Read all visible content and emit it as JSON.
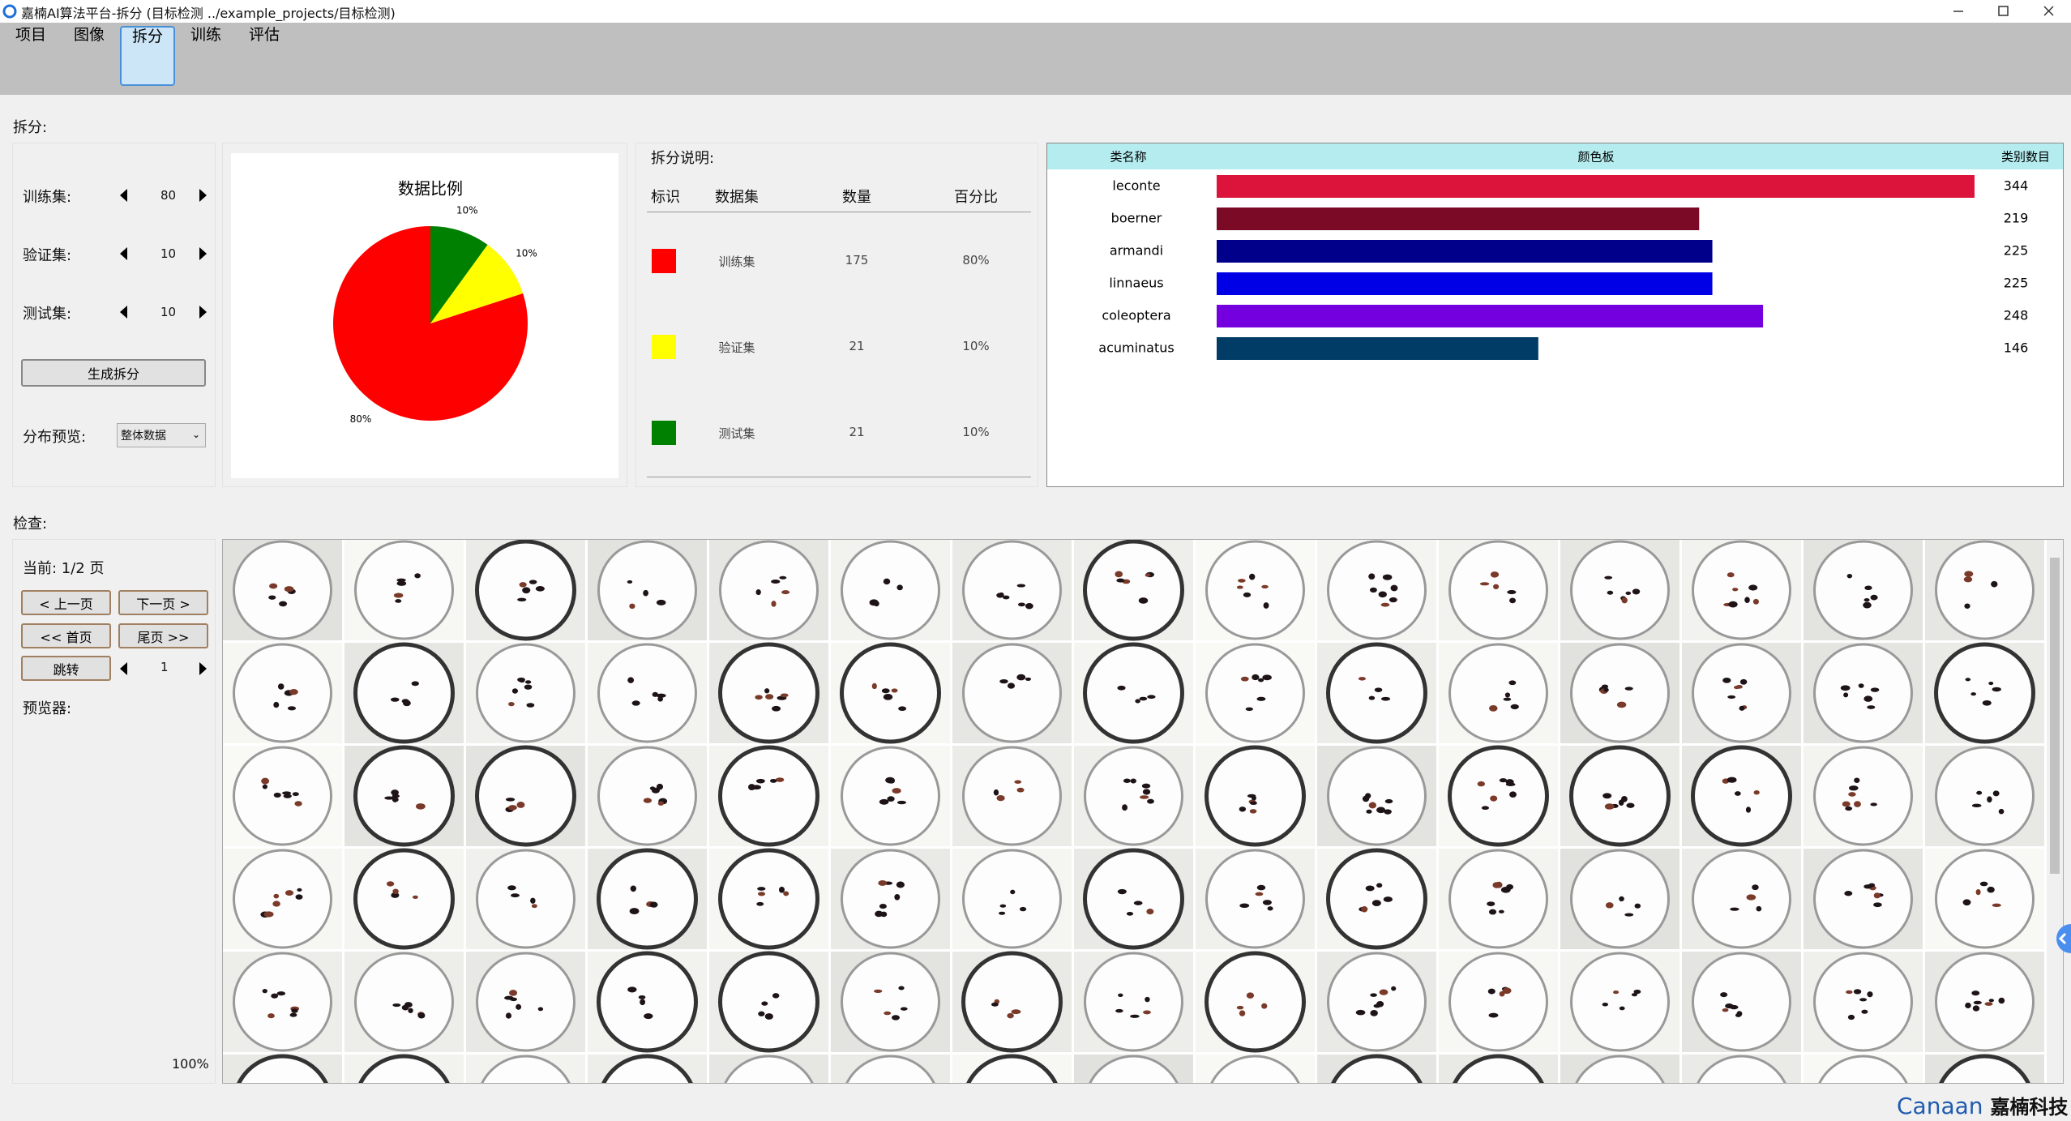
{
  "window": {
    "title": "嘉楠AI算法平台-拆分 (目标检测 ../example_projects/目标检测)"
  },
  "toolbar": {
    "items": [
      "项目",
      "图像",
      "拆分",
      "训练",
      "评估"
    ],
    "active": 2
  },
  "split": {
    "heading": "拆分:",
    "controls": [
      {
        "label": "训练集:",
        "value": 80
      },
      {
        "label": "验证集:",
        "value": 10
      },
      {
        "label": "测试集:",
        "value": 10
      }
    ],
    "generate_button": "生成拆分",
    "preview_label": "分布预览:",
    "preview_option": "整体数据"
  },
  "split_legend": {
    "heading": "拆分说明:",
    "columns": [
      "标识",
      "数据集",
      "数量",
      "百分比"
    ],
    "rows": [
      [
        "训练集",
        175,
        "80%"
      ],
      [
        "验证集",
        21,
        "10%"
      ],
      [
        "测试集",
        21,
        "10%"
      ]
    ]
  },
  "chart_data": [
    {
      "type": "pie",
      "title": "数据比例",
      "values": [
        80,
        10,
        10
      ],
      "value_labels": [
        "80%",
        "10%",
        "10%"
      ],
      "colors": [
        "#ff0000",
        "#ffff00",
        "#008000"
      ]
    },
    {
      "type": "bar",
      "orientation": "horizontal",
      "columns": [
        "类名称",
        "颜色板",
        "类别数目"
      ],
      "categories": [
        "leconte",
        "boerner",
        "armandi",
        "linnaeus",
        "coleoptera",
        "acuminatus"
      ],
      "values": [
        344,
        219,
        225,
        225,
        248,
        146
      ],
      "colors": [
        "#dc143c",
        "#7a0a25",
        "#00008b",
        "#0000e6",
        "#7400e0",
        "#003c66"
      ]
    }
  ],
  "inspect": {
    "heading": "检查:",
    "page_label": "当前: 1/2 页",
    "buttons": [
      "< 上一页",
      "下一页 >",
      "<< 首页",
      "尾页 >>",
      "跳转"
    ],
    "jump_value": 1,
    "preview_label": "预览器:",
    "progress": 100,
    "progress_label": "100%"
  },
  "footer": {
    "brand": "Canaan",
    "brand_cn": "嘉楠科技"
  }
}
